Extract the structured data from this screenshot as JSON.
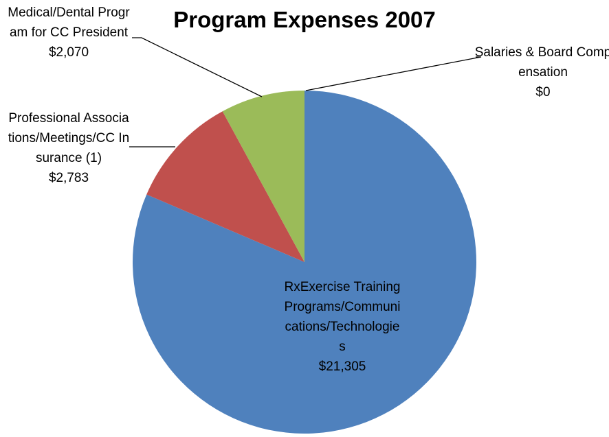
{
  "chart_data": {
    "type": "pie",
    "title": "Program Expenses 2007",
    "categories": [
      "RxExercise Training Programs/Communications/Technologies",
      "Professional Associations/Meetings/CC Insurance (1)",
      "Medical/Dental Program for CC President",
      "Salaries & Board Compensation"
    ],
    "values": [
      21305,
      2783,
      2070,
      0
    ],
    "value_labels": [
      "$21,305",
      "$2,783",
      "$2,070",
      "$0"
    ],
    "colors": [
      "#4f81bd",
      "#c0504d",
      "#9bbb59",
      "#8064a2"
    ]
  }
}
